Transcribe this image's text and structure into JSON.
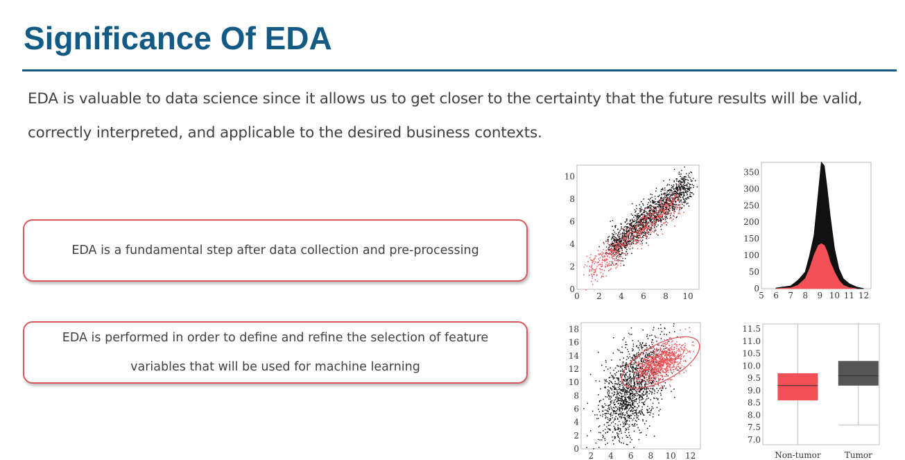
{
  "slide": {
    "title": "Significance Of EDA",
    "intro": "EDA is valuable to data science since it allows us to get closer to the certainty that the future results will be valid, correctly interpreted, and applicable to the desired business contexts.",
    "callouts": [
      "EDA is a fundamental step after data collection and pre-processing",
      "EDA is performed in order to define and refine the selection of feature variables that will be used for machine learning"
    ]
  },
  "colors": {
    "title": "#135a85",
    "callout_border": "#d9585c",
    "red_series": "#f05056",
    "black_series": "#111111"
  },
  "chart_data": [
    {
      "type": "scatter",
      "title": "",
      "xlabel": "",
      "ylabel": "",
      "xlim": [
        0,
        11
      ],
      "ylim": [
        0,
        11
      ],
      "x_ticks": [
        "0",
        "2",
        "4",
        "6",
        "8",
        "10"
      ],
      "y_ticks": [
        "0",
        "2",
        "4",
        "6",
        "8",
        "10"
      ],
      "series": [
        {
          "color": "#111111",
          "trend": {
            "x": [
              3,
              10
            ],
            "y": [
              3.5,
              9.3
            ]
          },
          "spread": 0.7
        },
        {
          "color": "#f05056",
          "trend": {
            "x": [
              1,
              9
            ],
            "y": [
              1.5,
              8.0
            ]
          },
          "spread": 0.6
        }
      ]
    },
    {
      "type": "area",
      "title": "",
      "xlim": [
        5,
        12.5
      ],
      "ylim": [
        0,
        380
      ],
      "x_ticks": [
        "5",
        "6",
        "7",
        "8",
        "9",
        "10",
        "11",
        "12"
      ],
      "y_ticks": [
        "0",
        "50",
        "100",
        "150",
        "200",
        "250",
        "300",
        "350"
      ],
      "series": [
        {
          "color": "#111111",
          "x": [
            6,
            7,
            7.5,
            8,
            8.3,
            8.6,
            8.9,
            9.1,
            9.3,
            9.5,
            9.7,
            10,
            10.3,
            10.6,
            11,
            11.5,
            12
          ],
          "y": [
            2,
            8,
            25,
            50,
            100,
            160,
            290,
            380,
            370,
            300,
            220,
            120,
            60,
            30,
            15,
            5,
            0
          ]
        },
        {
          "color": "#f05056",
          "x": [
            6,
            7,
            7.5,
            8,
            8.3,
            8.6,
            8.9,
            9.1,
            9.3,
            9.5,
            9.7,
            10,
            10.3,
            10.6,
            11,
            11.5
          ],
          "y": [
            0,
            2,
            10,
            30,
            60,
            100,
            130,
            135,
            130,
            110,
            80,
            50,
            25,
            10,
            3,
            0
          ]
        }
      ]
    },
    {
      "type": "scatter",
      "title": "",
      "xlim": [
        1,
        13
      ],
      "ylim": [
        0,
        19
      ],
      "x_ticks": [
        "2",
        "4",
        "6",
        "8",
        "10",
        "12"
      ],
      "y_ticks": [
        "0",
        "2",
        "4",
        "6",
        "8",
        "10",
        "12",
        "14",
        "16",
        "18"
      ],
      "series": [
        {
          "color": "#111111",
          "center": [
            6,
            9
          ],
          "spread": [
            1.6,
            3.2
          ]
        },
        {
          "color": "#f05056",
          "center": [
            9,
            13
          ],
          "spread": [
            1.3,
            1.7
          ]
        }
      ],
      "annotation": "ellipse"
    },
    {
      "type": "box",
      "title": "",
      "categories": [
        "Non-tumor",
        "Tumor"
      ],
      "ylim": [
        6.8,
        11.7
      ],
      "y_ticks": [
        "7.0",
        "7.5",
        "8.0",
        "8.5",
        "9.0",
        "9.5",
        "10.0",
        "10.5",
        "11.0",
        "11.5"
      ],
      "boxes": [
        {
          "name": "Non-tumor",
          "color": "#f05056",
          "whisker_low": 6.8,
          "q1": 8.6,
          "median": 9.2,
          "q3": 9.7,
          "whisker_high": 11.7
        },
        {
          "name": "Tumor",
          "color": "#555555",
          "whisker_low": 7.6,
          "q1": 9.2,
          "median": 9.6,
          "q3": 10.2,
          "whisker_high": 11.7
        }
      ]
    }
  ]
}
